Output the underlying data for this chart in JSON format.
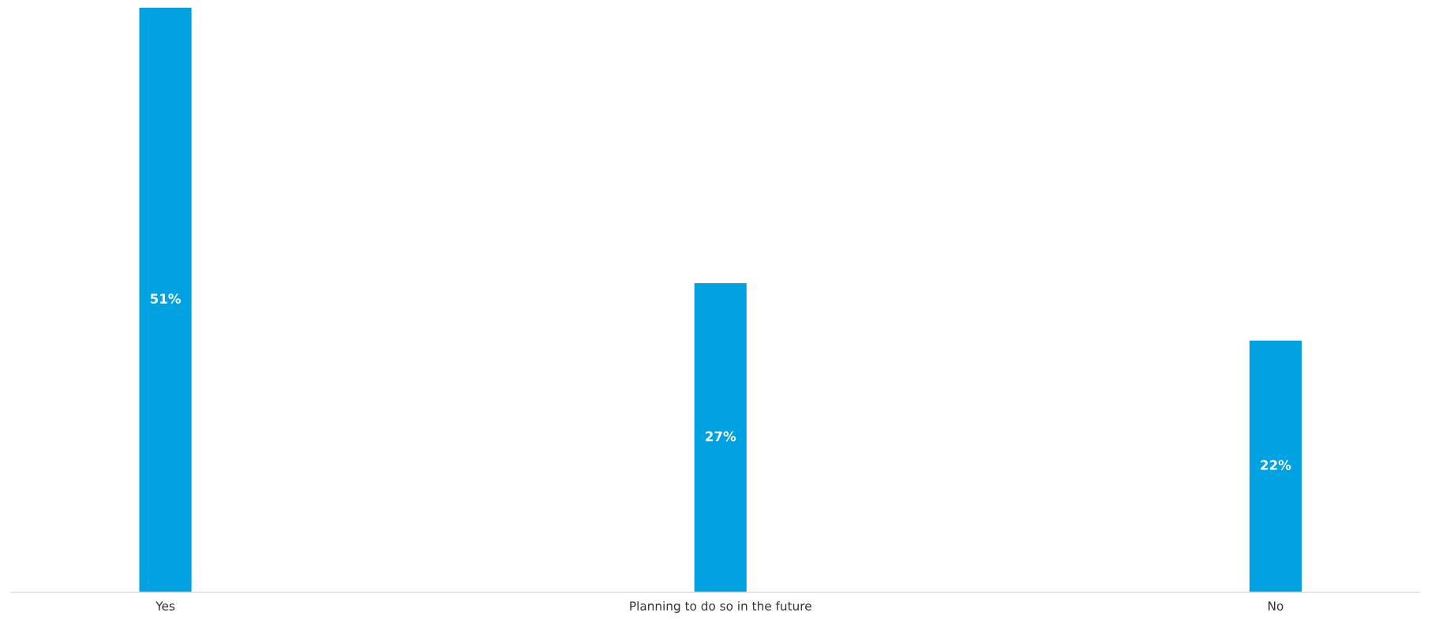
{
  "chart_data": {
    "type": "bar",
    "categories": [
      "Yes",
      "Planning to do so in the future",
      "No"
    ],
    "values": [
      51,
      27,
      22
    ],
    "value_labels": [
      "51%",
      "27%",
      "22%"
    ],
    "color": "#00a2e1",
    "grid": false,
    "legend": false
  }
}
